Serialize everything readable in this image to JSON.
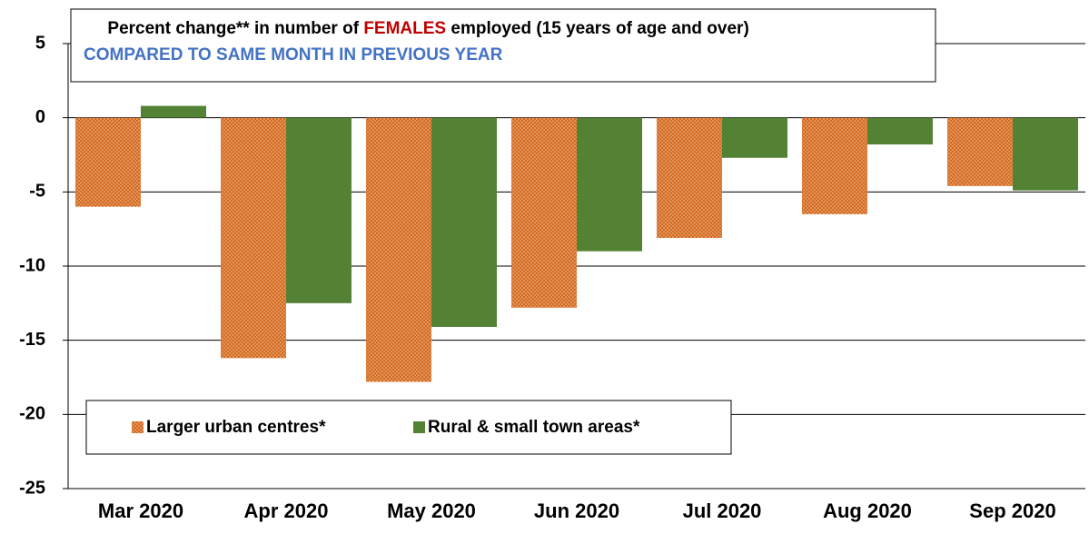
{
  "chart_data": {
    "type": "bar",
    "title": [
      "Percent change** in number of ",
      "FEMALES",
      " employed (15 years of age and over)"
    ],
    "subtitle": "COMPARED TO SAME MONTH IN PREVIOUS YEAR",
    "categories": [
      "Mar 2020",
      "Apr 2020",
      "May 2020",
      "Jun 2020",
      "Jul 2020",
      "Aug 2020",
      "Sep 2020"
    ],
    "series": [
      {
        "name": "Larger urban centres*",
        "color": "#d4691e",
        "values": [
          -6.0,
          -16.2,
          -17.8,
          -12.8,
          -8.1,
          -6.5,
          -4.6
        ]
      },
      {
        "name": "Rural & small town areas*",
        "color": "#548235",
        "values": [
          0.8,
          -12.5,
          -14.1,
          -9.0,
          -2.7,
          -1.8,
          -4.9
        ]
      }
    ],
    "ylim": [
      -25,
      5
    ],
    "yticks": [
      -25,
      -20,
      -15,
      -10,
      -5,
      0,
      5
    ],
    "grid": true
  }
}
